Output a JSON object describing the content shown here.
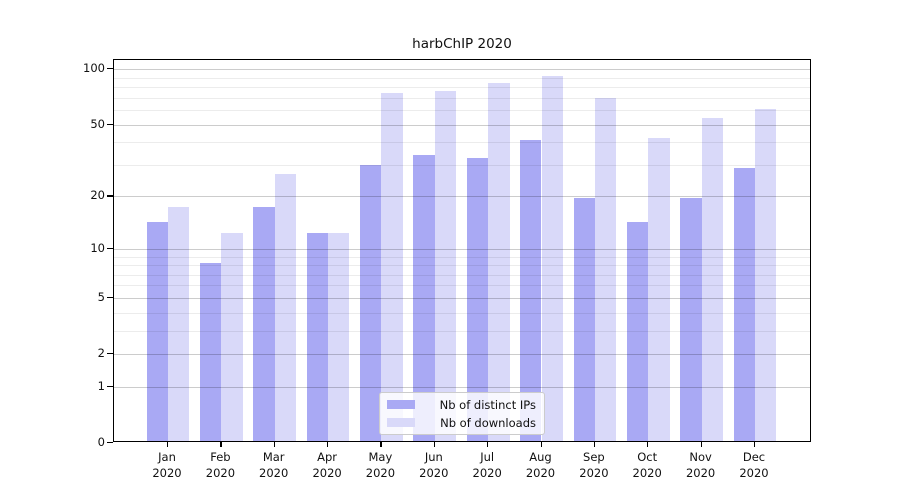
{
  "title": "harbChIP 2020",
  "chart_data": {
    "type": "bar",
    "title": "harbChIP 2020",
    "xlabel": "",
    "ylabel": "",
    "categories": [
      "Jan",
      "Feb",
      "Mar",
      "Apr",
      "May",
      "Jun",
      "Jul",
      "Aug",
      "Sep",
      "Oct",
      "Nov",
      "Dec"
    ],
    "year_label": "2020",
    "series": [
      {
        "name": "Nb of distinct IPs",
        "color": "#a9a9f4",
        "values": [
          14,
          8,
          17,
          12,
          29,
          33,
          32,
          40,
          19,
          14,
          19,
          28
        ]
      },
      {
        "name": "Nb of downloads",
        "color": "#d9d9f9",
        "values": [
          17,
          12,
          26,
          12,
          72,
          74,
          82,
          89,
          68,
          41,
          53,
          59
        ]
      }
    ],
    "yscale": "log1p",
    "ylim": [
      0,
      112
    ],
    "yticks_major": [
      0,
      1,
      2,
      5,
      10,
      20,
      50,
      100
    ],
    "yticks_minor": [
      3,
      4,
      6,
      7,
      8,
      9,
      30,
      40,
      60,
      70,
      80,
      90
    ],
    "grid": true,
    "legend_position": "bottom-center"
  },
  "legend": {
    "items": [
      {
        "label": "Nb of distinct IPs"
      },
      {
        "label": "Nb of downloads"
      }
    ]
  }
}
